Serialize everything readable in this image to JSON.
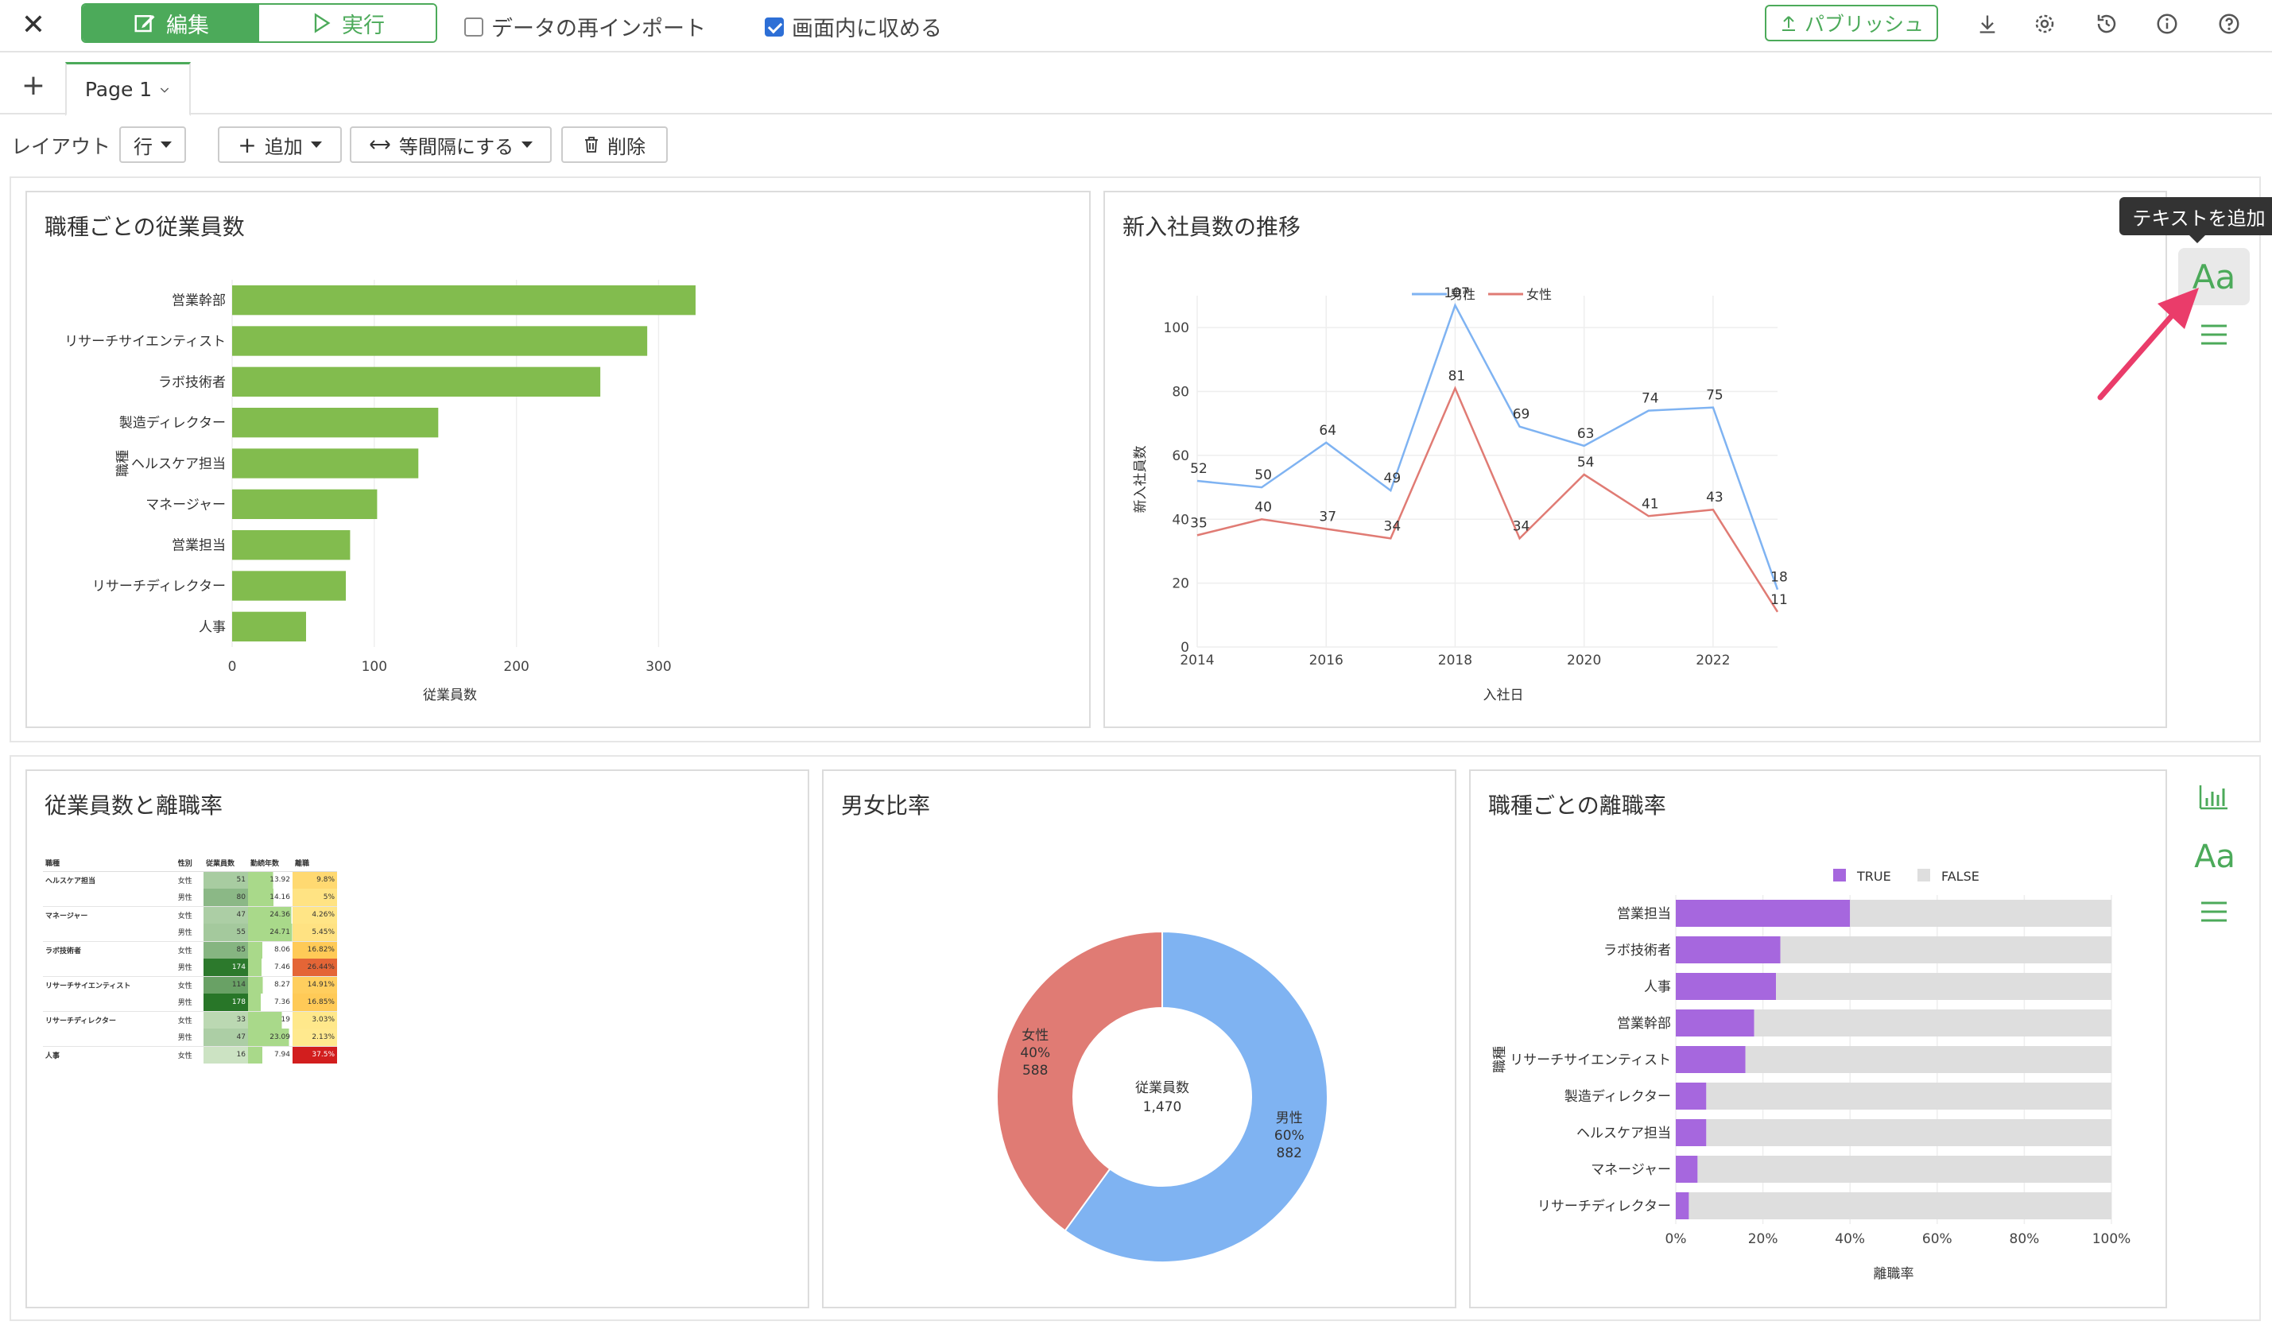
{
  "topbar": {
    "edit_label": "編集",
    "run_label": "実行",
    "reimport_label": "データの再インポート",
    "reimport_checked": false,
    "fit_label": "画面内に収める",
    "fit_checked": true,
    "publish_label": "パブリッシュ"
  },
  "tabs": {
    "page1_label": "Page 1"
  },
  "toolbar": {
    "layout_label": "レイアウト",
    "layout_value": "行",
    "add_label": "追加",
    "spacing_label": "等間隔にする",
    "delete_label": "削除"
  },
  "tooltip": {
    "text": "テキストを追加"
  },
  "colors": {
    "accent": "#4caa5a",
    "bar_green": "#82bc4e",
    "male_blue": "#7fb3f2",
    "female_red": "#e07b74",
    "purple": "#a667de",
    "gray_bar": "#dedede"
  },
  "icons": [
    "close-icon",
    "edit-icon",
    "play-icon",
    "publish-icon",
    "download-icon",
    "gear-icon",
    "history-icon",
    "info-icon",
    "help-icon",
    "plus-icon",
    "chevron-down-icon",
    "arrows-horizontal-icon",
    "trash-icon",
    "text-icon",
    "menu-icon",
    "chart-icon"
  ],
  "cards": {
    "headcount_title": "職種ごとの従業員数",
    "newhire_title": "新入社員数の推移",
    "table_title": "従業員数と離職率",
    "gender_title": "男女比率",
    "attrition_title": "職種ごとの離職率"
  },
  "chart_data": [
    {
      "type": "bar",
      "orientation": "horizontal",
      "title": "職種ごとの従業員数",
      "categories": [
        "営業幹部",
        "リサーチサイエンティスト",
        "ラボ技術者",
        "製造ディレクター",
        "ヘルスケア担当",
        "マネージャー",
        "営業担当",
        "リサーチディレクター",
        "人事"
      ],
      "values": [
        326,
        292,
        259,
        145,
        131,
        102,
        83,
        80,
        52
      ],
      "xlabel": "従業員数",
      "ylabel": "職種",
      "xticks": [
        0,
        100,
        200,
        300
      ],
      "xlim": [
        0,
        340
      ]
    },
    {
      "type": "line",
      "title": "新入社員数の推移",
      "x": [
        2014,
        2015,
        2016,
        2017,
        2018,
        2019,
        2020,
        2021,
        2022,
        2023
      ],
      "series": [
        {
          "name": "男性",
          "values": [
            52,
            50,
            64,
            49,
            107,
            69,
            63,
            74,
            75,
            18
          ]
        },
        {
          "name": "女性",
          "values": [
            35,
            40,
            37,
            34,
            81,
            34,
            54,
            41,
            43,
            11
          ]
        }
      ],
      "xlabel": "入社日",
      "ylabel": "新入社員数",
      "xticks": [
        2014,
        2016,
        2018,
        2020,
        2022
      ],
      "yticks": [
        0,
        20,
        40,
        60,
        80,
        100
      ],
      "ylim": [
        0,
        110
      ],
      "legend": "top-center"
    },
    {
      "type": "table",
      "title": "従業員数と離職率",
      "columns": [
        "職種",
        "性別",
        "従業員数",
        "勤続年数",
        "離職"
      ],
      "rows": [
        [
          "ヘルスケア担当",
          "女性",
          "51",
          "13.92",
          "9.8%"
        ],
        [
          "",
          "男性",
          "80",
          "14.16",
          "5%"
        ],
        [
          "マネージャー",
          "女性",
          "47",
          "24.36",
          "4.26%"
        ],
        [
          "",
          "男性",
          "55",
          "24.71",
          "5.45%"
        ],
        [
          "ラボ技術者",
          "女性",
          "85",
          "8.06",
          "16.82%"
        ],
        [
          "",
          "男性",
          "174",
          "7.46",
          "26.44%"
        ],
        [
          "リサーチサイエンティスト",
          "女性",
          "114",
          "8.27",
          "14.91%"
        ],
        [
          "",
          "男性",
          "178",
          "7.36",
          "16.85%"
        ],
        [
          "リサーチディレクター",
          "女性",
          "33",
          "19",
          "3.03%"
        ],
        [
          "",
          "男性",
          "47",
          "23.09",
          "2.13%"
        ],
        [
          "人事",
          "女性",
          "16",
          "7.94",
          "37.5%"
        ]
      ]
    },
    {
      "type": "pie",
      "title": "男女比率",
      "donut": true,
      "center_label": "従業員数",
      "center_value": "1,470",
      "slices": [
        {
          "name": "男性",
          "value": 882,
          "pct": "60%"
        },
        {
          "name": "女性",
          "value": 588,
          "pct": "40%"
        }
      ]
    },
    {
      "type": "bar",
      "orientation": "horizontal",
      "stacked": "percent",
      "title": "職種ごとの離職率",
      "categories": [
        "営業担当",
        "ラボ技術者",
        "人事",
        "営業幹部",
        "リサーチサイエンティスト",
        "製造ディレクター",
        "ヘルスケア担当",
        "マネージャー",
        "リサーチディレクター"
      ],
      "series": [
        {
          "name": "TRUE",
          "values": [
            40,
            24,
            23,
            18,
            16,
            7,
            7,
            5,
            3
          ]
        },
        {
          "name": "FALSE",
          "values": [
            60,
            76,
            77,
            82,
            84,
            93,
            93,
            95,
            97
          ]
        }
      ],
      "xlabel": "離職率",
      "ylabel": "職種",
      "xticks": [
        "0%",
        "20%",
        "40%",
        "60%",
        "80%",
        "100%"
      ],
      "legend": "top-center"
    }
  ]
}
